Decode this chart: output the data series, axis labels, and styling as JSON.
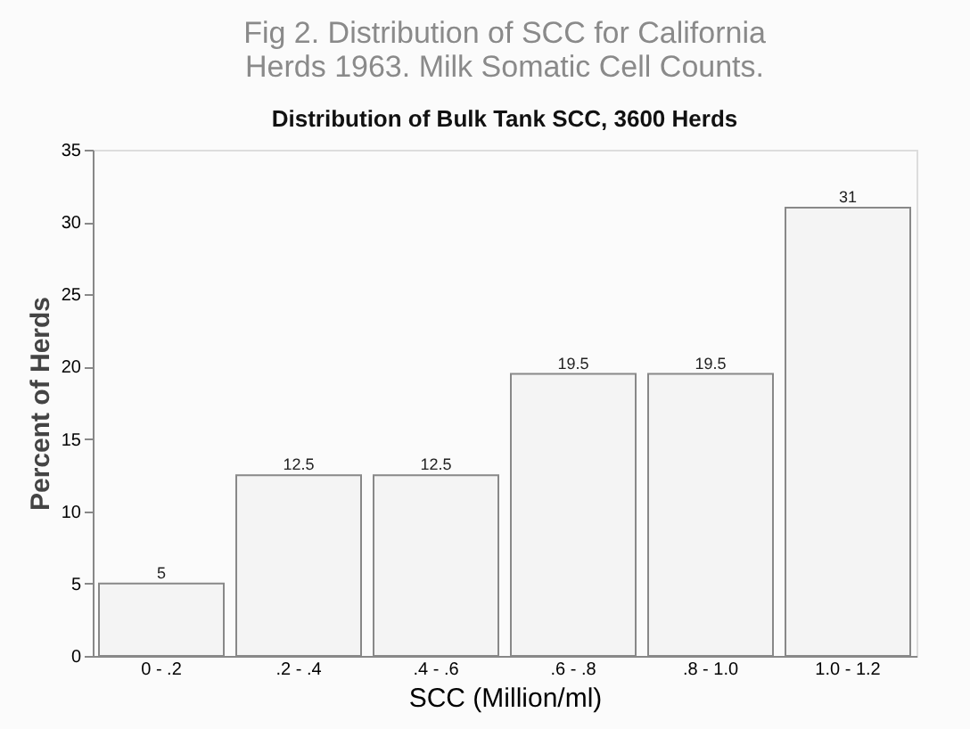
{
  "chart_data": {
    "type": "bar",
    "title": "Fig 2. Distribution of SCC for California Herds 1963. Milk Somatic Cell Counts.",
    "subtitle": "Distribution of Bulk Tank SCC, 3600 Herds",
    "xlabel": "SCC (Million/ml)",
    "ylabel": "Percent of Herds",
    "categories": [
      "0 - .2",
      ".2 - .4",
      ".4 - .6",
      ".6 - .8",
      ".8 - 1.0",
      "1.0 - 1.2"
    ],
    "values": [
      5,
      12.5,
      12.5,
      19.5,
      19.5,
      31
    ],
    "color": "#f4f4f4",
    "ylim": [
      0,
      35
    ],
    "yticks": [
      0,
      5,
      10,
      15,
      20,
      25,
      30,
      35
    ],
    "grid": false,
    "data_labels": true
  }
}
